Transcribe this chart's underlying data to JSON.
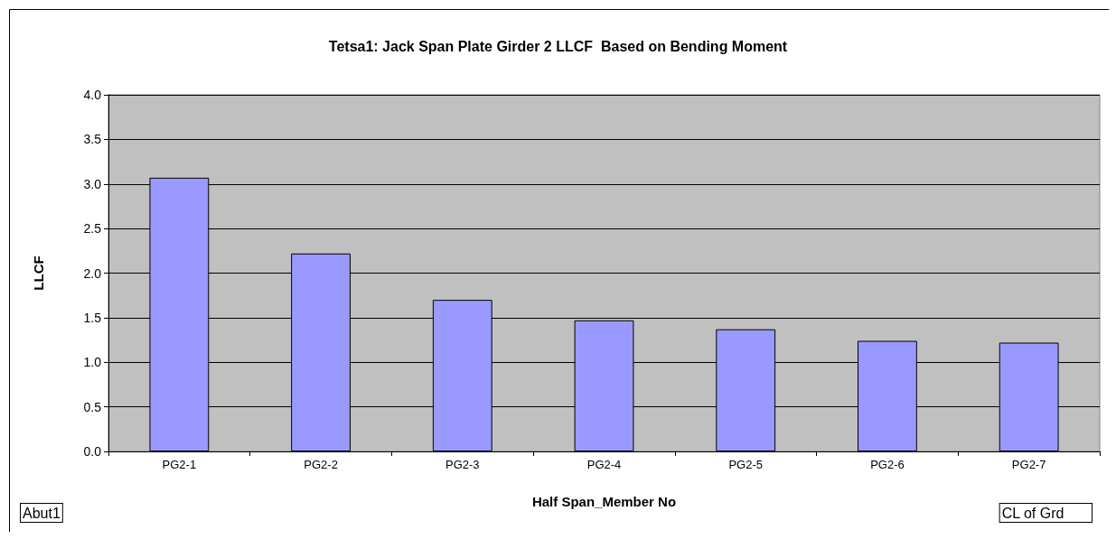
{
  "chart_data": {
    "type": "bar",
    "title": "Tetsa1: Jack Span Plate Girder 2 LLCF  Based on Bending Moment",
    "xlabel": "Half Span_Member No",
    "ylabel": "LLCF",
    "categories": [
      "PG2-1",
      "PG2-2",
      "PG2-3",
      "PG2-4",
      "PG2-5",
      "PG2-6",
      "PG2-7"
    ],
    "values": [
      3.07,
      2.22,
      1.7,
      1.47,
      1.37,
      1.24,
      1.22
    ],
    "color": "#9999ff",
    "ylim": [
      0,
      4
    ],
    "yticks": [
      {
        "value": 0,
        "label": "0.0"
      },
      0.5,
      {
        "value": 1,
        "label": "1.0"
      },
      1.5,
      {
        "value": 2,
        "label": "2.0"
      },
      2.5,
      {
        "value": 3,
        "label": "3.0"
      },
      3.5,
      {
        "value": 4,
        "label": "4.0"
      }
    ],
    "grid": "y",
    "annotations": [
      "Abut1",
      "CL of Grd"
    ]
  }
}
